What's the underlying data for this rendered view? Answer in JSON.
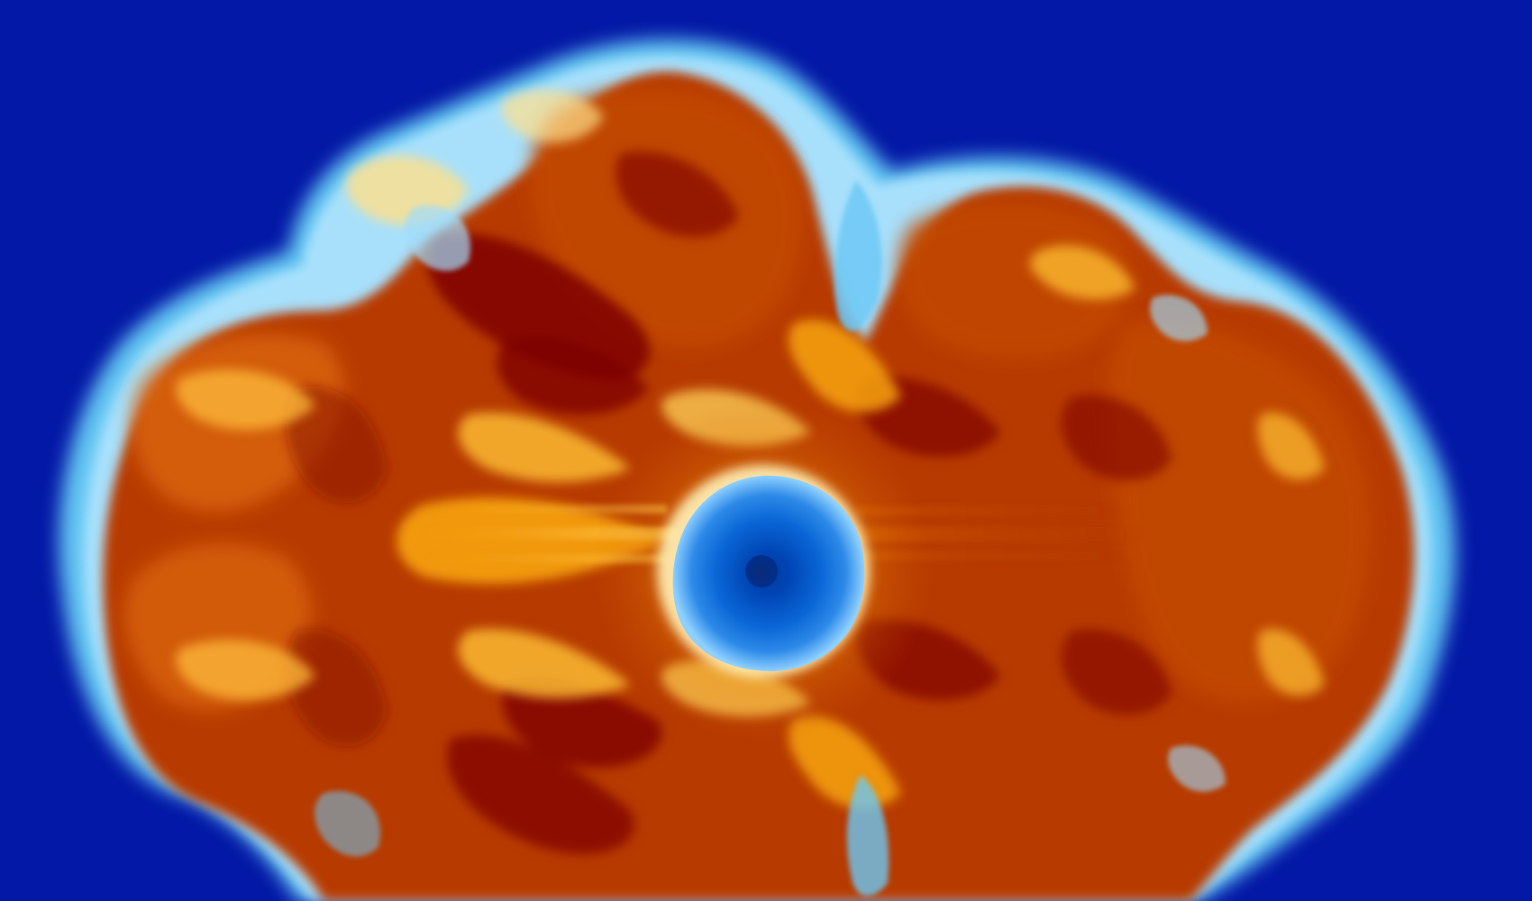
{
  "image": {
    "subject": "simulation-visualization",
    "colormap": "blue-white-orange-red",
    "colors": {
      "background": "#0318a6",
      "shell_light_blue": "#63c6f2",
      "shell_pale": "#bfe9ff",
      "hot_white": "#fff1b8",
      "bright_orange": "#f7a30b",
      "orange": "#d96308",
      "burnt": "#b73a04",
      "dark_red": "#7e0500",
      "core_blue": "#0a66d6",
      "core_dark": "#003a9a"
    }
  }
}
